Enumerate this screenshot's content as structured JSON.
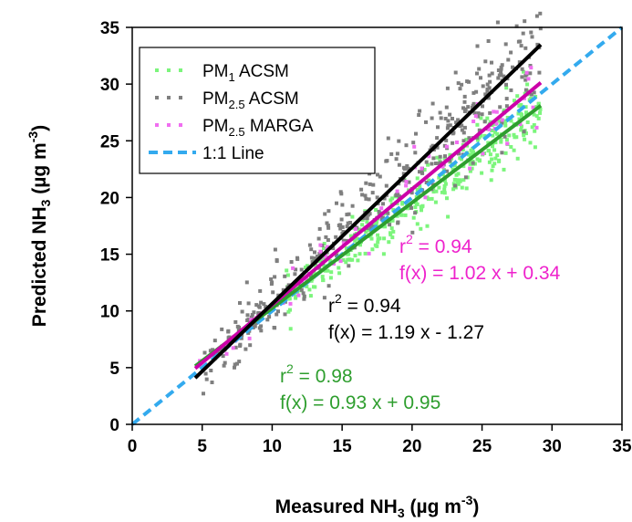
{
  "chart_data": {
    "type": "scatter",
    "xlabel": {
      "pre": "Measured NH",
      "sub": "3",
      "mid": " (µg m",
      "sup": "-3",
      "post": ")"
    },
    "ylabel": {
      "pre": "Predicted NH",
      "sub": "3",
      "mid": " (µg m",
      "sup": "-3",
      "post": ")"
    },
    "xlim": [
      0,
      35
    ],
    "ylim": [
      0,
      35
    ],
    "xticks": [
      "0",
      "5",
      "10",
      "15",
      "20",
      "25",
      "30",
      "35"
    ],
    "yticks": [
      "0",
      "5",
      "10",
      "15",
      "20",
      "25",
      "30",
      "35"
    ],
    "grid": false,
    "legend_position": "top-left",
    "series": [
      {
        "key": "pm1",
        "name": {
          "pre": "PM",
          "sub": "1",
          "post": " ACSM"
        },
        "color": "#7cf57c",
        "slope": 0.93,
        "intercept": 0.95,
        "fit_color": "#2e9e2e",
        "x_range": [
          11,
          29.2
        ],
        "spread": 1.0,
        "n": 360
      },
      {
        "key": "pm25acsm",
        "name": {
          "pre": "PM",
          "sub": "2.5",
          "post": " ACSM"
        },
        "color": "#7f7f7f",
        "slope": 1.19,
        "intercept": -1.27,
        "fit_color": "#000000",
        "x_range": [
          5,
          29.2
        ],
        "spread": 1.7,
        "n": 420
      },
      {
        "key": "pm25marga",
        "name": {
          "pre": "PM",
          "sub": "2.5",
          "post": " MARGA"
        },
        "color": "#f06ef0",
        "slope": 1.02,
        "intercept": 0.34,
        "fit_color": "#cc00a8",
        "x_range": [
          4.5,
          29
        ],
        "spread": 1.2,
        "n": 60
      }
    ],
    "one_to_one": {
      "name": "1:1 Line",
      "color": "#33aaee"
    },
    "fit_lines": [
      {
        "key": "pm1",
        "x": [
          4.5,
          29.2
        ],
        "color": "#2e9e2e"
      },
      {
        "key": "pm25marga",
        "x": [
          4.5,
          29.2
        ],
        "color": "#cc00a8"
      },
      {
        "key": "pm25acsm",
        "x": [
          4.5,
          29.2
        ],
        "color": "#000000"
      }
    ],
    "annotations": [
      {
        "key": "pm25marga",
        "r2": "0.94",
        "fx": "f(x) = 1.02 x + 0.34",
        "color": "#ee22cc"
      },
      {
        "key": "pm25acsm",
        "r2": "0.94",
        "fx": "f(x) = 1.19 x - 1.27",
        "color": "#000000"
      },
      {
        "key": "pm1",
        "r2": "0.98",
        "fx": "f(x) = 0.93 x + 0.95",
        "color": "#2e9e2e"
      }
    ],
    "r_label": "r",
    "r_sup": "2",
    "r_rest": " = "
  }
}
